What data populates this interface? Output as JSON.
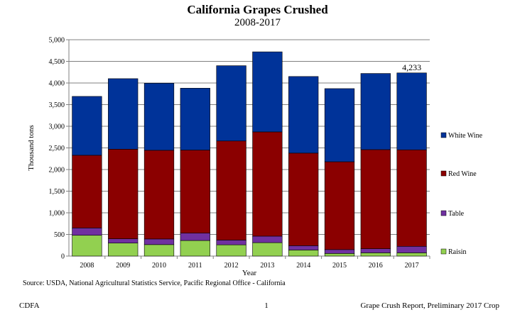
{
  "chart_data": {
    "type": "stacked-bar",
    "title": "California Grapes Crushed",
    "subtitle": "2008-2017",
    "xlabel": "Year",
    "ylabel": "Thousand tons",
    "ylim": [
      0,
      5000
    ],
    "yticks": [
      0,
      500,
      1000,
      1500,
      2000,
      2500,
      3000,
      3500,
      4000,
      4500,
      5000
    ],
    "ytick_labels": [
      "0",
      "500",
      "1,000",
      "1,500",
      "2,000",
      "2,500",
      "3,000",
      "3,500",
      "4,000",
      "4,500",
      "5,000"
    ],
    "categories": [
      "2008",
      "2009",
      "2010",
      "2011",
      "2012",
      "2013",
      "2014",
      "2015",
      "2016",
      "2017"
    ],
    "series": [
      {
        "name": "Raisin",
        "color": "#92d050",
        "values": [
          480,
          300,
          265,
          360,
          260,
          310,
          140,
          60,
          75,
          75
        ]
      },
      {
        "name": "Table",
        "color": "#7030a0",
        "values": [
          170,
          100,
          130,
          170,
          110,
          150,
          100,
          90,
          95,
          150
        ]
      },
      {
        "name": "Red Wine",
        "color": "#8b0000",
        "values": [
          1680,
          2070,
          2050,
          1920,
          2290,
          2410,
          2140,
          2030,
          2290,
          2230
        ]
      },
      {
        "name": "White Wine",
        "color": "#003399",
        "values": [
          1360,
          1630,
          1550,
          1430,
          1740,
          1850,
          1770,
          1690,
          1760,
          1778
        ]
      }
    ],
    "annotations": [
      {
        "category": "2017",
        "text": "4,233"
      }
    ],
    "legend_position": "right"
  },
  "source": "Source: USDA, National Agricultural Statistics Service, Pacific Regional Office - California",
  "footer": {
    "left": "CDFA",
    "page": "1",
    "right": "Grape Crush Report, Preliminary 2017 Crop"
  }
}
